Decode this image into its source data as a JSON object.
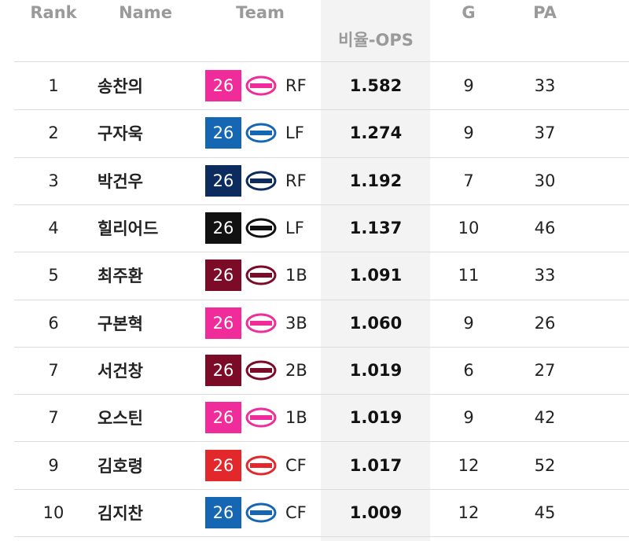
{
  "header": {
    "rank": "Rank",
    "name": "Name",
    "team": "Team",
    "ops": "비율-OPS",
    "g": "G",
    "pa": "PA"
  },
  "rows": [
    {
      "rank": 1,
      "name": "송찬의",
      "team_no": 26,
      "team_color": "#f02c9a",
      "position": "RF",
      "ops": "1.582",
      "g": 9,
      "pa": 33
    },
    {
      "rank": 2,
      "name": "구자욱",
      "team_no": 26,
      "team_color": "#1566b3",
      "position": "LF",
      "ops": "1.274",
      "g": 9,
      "pa": 37
    },
    {
      "rank": 3,
      "name": "박건우",
      "team_no": 26,
      "team_color": "#0c2b5e",
      "position": "RF",
      "ops": "1.192",
      "g": 7,
      "pa": 30
    },
    {
      "rank": 4,
      "name": "힐리어드",
      "team_no": 26,
      "team_color": "#111111",
      "position": "LF",
      "ops": "1.137",
      "g": 10,
      "pa": 46
    },
    {
      "rank": 5,
      "name": "최주환",
      "team_no": 26,
      "team_color": "#7b0b27",
      "position": "1B",
      "ops": "1.091",
      "g": 11,
      "pa": 33
    },
    {
      "rank": 6,
      "name": "구본혁",
      "team_no": 26,
      "team_color": "#f02c9a",
      "position": "3B",
      "ops": "1.060",
      "g": 9,
      "pa": 26
    },
    {
      "rank": 7,
      "name": "서건창",
      "team_no": 26,
      "team_color": "#7b0b27",
      "position": "2B",
      "ops": "1.019",
      "g": 6,
      "pa": 27
    },
    {
      "rank": 7,
      "name": "오스틴",
      "team_no": 26,
      "team_color": "#f02c9a",
      "position": "1B",
      "ops": "1.019",
      "g": 9,
      "pa": 42
    },
    {
      "rank": 9,
      "name": "김호령",
      "team_no": 26,
      "team_color": "#e2282b",
      "position": "CF",
      "ops": "1.017",
      "g": 12,
      "pa": 52
    },
    {
      "rank": 10,
      "name": "김지찬",
      "team_no": 26,
      "team_color": "#1566b3",
      "position": "CF",
      "ops": "1.009",
      "g": 12,
      "pa": 45
    }
  ]
}
